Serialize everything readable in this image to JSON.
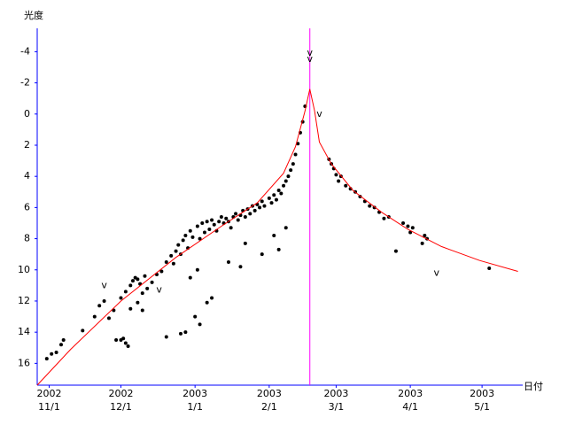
{
  "chart_data": {
    "type": "scatter",
    "y_label": "光度",
    "x_label": "日付",
    "xlim": [
      "2002-10-27",
      "2003-05-18"
    ],
    "ylim": [
      17.4,
      -5.5
    ],
    "yticks": [
      -4,
      -2,
      0,
      2,
      4,
      6,
      8,
      10,
      12,
      14,
      16
    ],
    "xticks": [
      {
        "value": "2002-11-01",
        "label": [
          "2002",
          "11/1"
        ]
      },
      {
        "value": "2002-12-01",
        "label": [
          "2002",
          "12/1"
        ]
      },
      {
        "value": "2003-01-01",
        "label": [
          "2003",
          "1/1"
        ]
      },
      {
        "value": "2003-02-01",
        "label": [
          "2003",
          "2/1"
        ]
      },
      {
        "value": "2003-03-01",
        "label": [
          "2003",
          "3/1"
        ]
      },
      {
        "value": "2003-04-01",
        "label": [
          "2003",
          "4/1"
        ]
      },
      {
        "value": "2003-05-01",
        "label": [
          "2003",
          "5/1"
        ]
      }
    ],
    "axis_color": "#0000ff",
    "vline": {
      "x": "2003-02-18",
      "color": "#ff00ff"
    },
    "series": [
      {
        "type": "scatter",
        "color": "#000000",
        "x": [
          "2002-10-31",
          "2002-11-02",
          "2002-11-04",
          "2002-11-06",
          "2002-11-07",
          "2002-11-15",
          "2002-11-20",
          "2002-11-22",
          "2002-11-24",
          "2002-11-26",
          "2002-11-28",
          "2002-11-29",
          "2002-12-01",
          "2002-12-02",
          "2002-12-03",
          "2002-12-04",
          "2002-12-01",
          "2002-12-03",
          "2002-12-05",
          "2002-12-06",
          "2002-12-07",
          "2002-12-08",
          "2002-12-09",
          "2002-12-10",
          "2002-12-11",
          "2002-12-12",
          "2002-12-14",
          "2002-12-16",
          "2002-12-18",
          "2002-12-05",
          "2002-12-08",
          "2002-12-10",
          "2002-12-20",
          "2002-12-22",
          "2002-12-23",
          "2002-12-24",
          "2002-12-25",
          "2002-12-26",
          "2002-12-27",
          "2002-12-28",
          "2002-12-29",
          "2002-12-30",
          "2002-12-31",
          "2003-01-02",
          "2003-01-03",
          "2003-01-04",
          "2003-01-05",
          "2003-01-06",
          "2003-01-07",
          "2003-01-08",
          "2003-01-09",
          "2003-01-10",
          "2003-01-11",
          "2003-01-12",
          "2003-01-13",
          "2003-01-14",
          "2003-01-15",
          "2003-01-16",
          "2003-01-17",
          "2003-01-18",
          "2003-01-19",
          "2003-01-20",
          "2003-01-21",
          "2003-01-22",
          "2003-01-23",
          "2003-01-24",
          "2003-01-25",
          "2003-01-26",
          "2003-01-27",
          "2003-01-28",
          "2003-01-29",
          "2003-01-30",
          "2003-02-01",
          "2003-02-02",
          "2003-02-03",
          "2003-02-04",
          "2003-02-05",
          "2003-02-06",
          "2003-02-07",
          "2003-02-08",
          "2003-02-09",
          "2003-02-10",
          "2003-02-11",
          "2003-02-12",
          "2003-02-13",
          "2003-02-14",
          "2003-02-15",
          "2003-02-16",
          "2002-12-20",
          "2002-12-26",
          "2002-12-28",
          "2003-01-01",
          "2003-01-03",
          "2003-01-06",
          "2003-01-08",
          "2002-12-30",
          "2003-01-02",
          "2003-01-15",
          "2003-01-20",
          "2003-01-22",
          "2003-01-29",
          "2003-02-03",
          "2003-02-05",
          "2003-02-08",
          "2003-02-26",
          "2003-02-27",
          "2003-02-28",
          "2003-03-01",
          "2003-03-02",
          "2003-03-03",
          "2003-03-05",
          "2003-03-07",
          "2003-03-09",
          "2003-03-11",
          "2003-03-13",
          "2003-03-15",
          "2003-03-17",
          "2003-03-19",
          "2003-03-21",
          "2003-03-23",
          "2003-03-26",
          "2003-03-29",
          "2003-03-31",
          "2003-04-01",
          "2003-04-02",
          "2003-04-06",
          "2003-04-07",
          "2003-04-08",
          "2003-05-04"
        ],
        "values": [
          15.7,
          15.4,
          15.3,
          14.8,
          14.5,
          13.9,
          13.0,
          12.3,
          12.0,
          13.1,
          12.6,
          14.5,
          14.5,
          14.4,
          14.7,
          14.9,
          11.8,
          11.4,
          11.0,
          10.7,
          10.5,
          10.6,
          10.9,
          11.5,
          10.4,
          11.2,
          10.8,
          10.3,
          10.1,
          12.5,
          12.1,
          12.6,
          9.5,
          9.1,
          9.6,
          8.8,
          8.4,
          9.0,
          8.1,
          7.8,
          8.6,
          7.5,
          7.9,
          7.2,
          8.0,
          7.0,
          7.6,
          6.9,
          7.4,
          6.8,
          7.1,
          7.5,
          6.9,
          6.6,
          7.0,
          6.7,
          6.9,
          7.3,
          6.6,
          6.4,
          6.8,
          6.5,
          6.2,
          6.6,
          6.1,
          6.4,
          5.9,
          6.2,
          5.8,
          6.0,
          5.6,
          5.9,
          5.4,
          5.7,
          5.2,
          5.5,
          4.9,
          5.1,
          4.6,
          4.3,
          4.0,
          3.6,
          3.2,
          2.6,
          1.9,
          1.2,
          0.5,
          -0.5,
          14.3,
          14.1,
          14.0,
          13.0,
          13.5,
          12.1,
          11.8,
          10.5,
          10.0,
          9.5,
          9.8,
          8.3,
          9.0,
          7.8,
          8.7,
          7.3,
          2.9,
          3.2,
          3.5,
          3.9,
          4.3,
          4.0,
          4.6,
          4.8,
          5.0,
          5.3,
          5.6,
          5.9,
          6.0,
          6.3,
          6.7,
          6.6,
          8.8,
          7.0,
          7.2,
          7.6,
          7.3,
          8.3,
          7.8,
          8.0,
          9.9
        ]
      },
      {
        "type": "line",
        "color": "#ff0000",
        "x": [
          "2002-10-27",
          "2002-11-10",
          "2002-12-01",
          "2002-12-24",
          "2003-01-12",
          "2003-01-27",
          "2003-02-07",
          "2003-02-12",
          "2003-02-16",
          "2003-02-18",
          "2003-02-20",
          "2003-02-22",
          "2003-02-27",
          "2003-03-08",
          "2003-03-20",
          "2003-03-31",
          "2003-04-14",
          "2003-04-30",
          "2003-05-16"
        ],
        "values": [
          17.4,
          15.1,
          12.0,
          9.2,
          7.2,
          5.7,
          3.8,
          2.1,
          -0.2,
          -1.6,
          -0.2,
          1.8,
          3.2,
          4.9,
          6.3,
          7.4,
          8.5,
          9.4,
          10.1
        ]
      },
      {
        "type": "symbol",
        "symbol": "v",
        "color": "#000000",
        "x": [
          "2002-11-24",
          "2002-12-17",
          "2003-02-18",
          "2003-02-18",
          "2003-02-22",
          "2003-04-12"
        ],
        "values": [
          11.0,
          11.3,
          -3.9,
          -3.5,
          0.0,
          10.2
        ]
      }
    ]
  }
}
